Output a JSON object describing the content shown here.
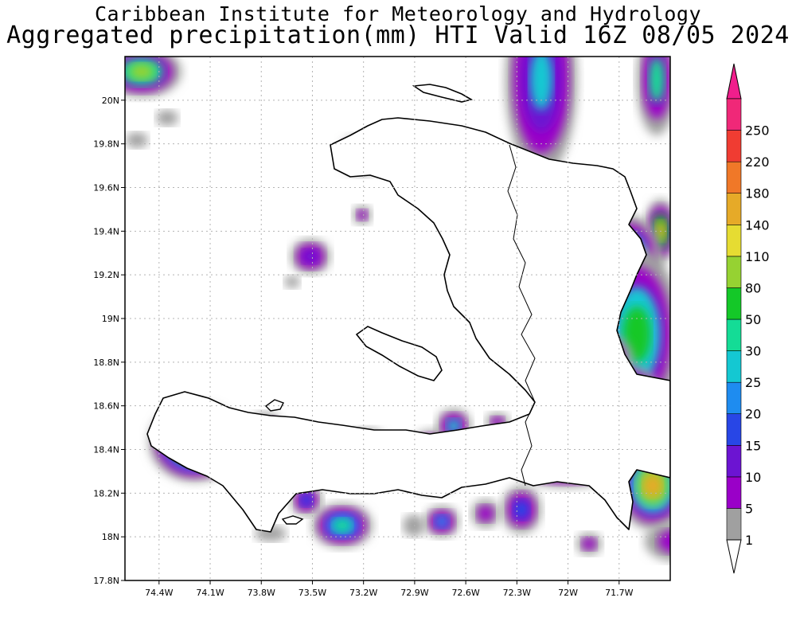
{
  "header": {
    "line1": "Caribbean Institute for Meteorology and Hydrology",
    "line2": "Aggregated precipitation(mm) HTI Valid 16Z 08/05 2024"
  },
  "map": {
    "lon_range": [
      -74.6,
      -71.4
    ],
    "lat_range": [
      17.8,
      20.2
    ],
    "x_ticks": [
      {
        "value": -74.4,
        "label": "74.4W"
      },
      {
        "value": -74.1,
        "label": "74.1W"
      },
      {
        "value": -73.8,
        "label": "73.8W"
      },
      {
        "value": -73.5,
        "label": "73.5W"
      },
      {
        "value": -73.2,
        "label": "73.2W"
      },
      {
        "value": -72.9,
        "label": "72.9W"
      },
      {
        "value": -72.6,
        "label": "72.6W"
      },
      {
        "value": -72.3,
        "label": "72.3W"
      },
      {
        "value": -72.0,
        "label": "72W"
      },
      {
        "value": -71.7,
        "label": "71.7W"
      }
    ],
    "y_ticks": [
      {
        "value": 17.8,
        "label": "17.8N"
      },
      {
        "value": 18.0,
        "label": "18N"
      },
      {
        "value": 18.2,
        "label": "18.2N"
      },
      {
        "value": 18.4,
        "label": "18.4N"
      },
      {
        "value": 18.6,
        "label": "18.6N"
      },
      {
        "value": 18.8,
        "label": "18.8N"
      },
      {
        "value": 19.0,
        "label": "19N"
      },
      {
        "value": 19.2,
        "label": "19.2N"
      },
      {
        "value": 19.4,
        "label": "19.4N"
      },
      {
        "value": 19.6,
        "label": "19.6N"
      },
      {
        "value": 19.8,
        "label": "19.8N"
      },
      {
        "value": 20.0,
        "label": "20N"
      }
    ],
    "grid": true
  },
  "colorbar": {
    "levels": [
      {
        "label": "1",
        "color": "#a0a0a0"
      },
      {
        "label": "5",
        "color": "#9a00c8"
      },
      {
        "label": "10",
        "color": "#6c14d2"
      },
      {
        "label": "15",
        "color": "#2846e6"
      },
      {
        "label": "20",
        "color": "#1e8cf0"
      },
      {
        "label": "25",
        "color": "#14c8d2"
      },
      {
        "label": "30",
        "color": "#14dc96"
      },
      {
        "label": "50",
        "color": "#14c828"
      },
      {
        "label": "80",
        "color": "#96d232"
      },
      {
        "label": "110",
        "color": "#e6dc32"
      },
      {
        "label": "140",
        "color": "#e6aa28"
      },
      {
        "label": "180",
        "color": "#f07828"
      },
      {
        "label": "220",
        "color": "#f03c32"
      },
      {
        "label": "250",
        "color": "#f02878"
      }
    ],
    "top_color": "#f01e8c"
  },
  "colors": {
    "land_fill": "#ffffff",
    "coastline": "#000000",
    "grid_line": "#b4b4b4",
    "light_rain": "#a0a0a0"
  }
}
